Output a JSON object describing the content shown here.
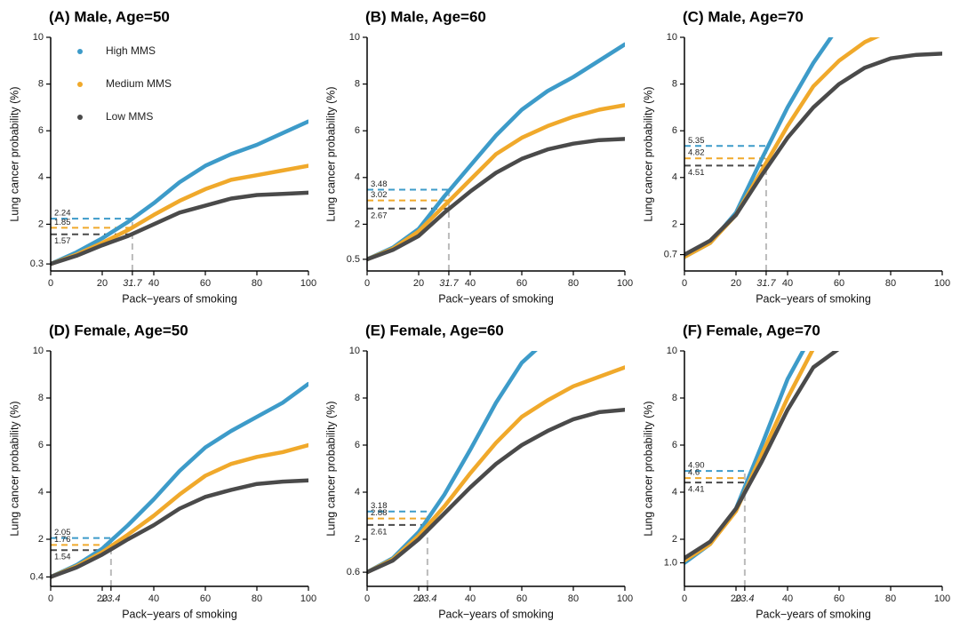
{
  "chart_data": [
    {
      "type": "line",
      "title": "(A) Male, Age=50",
      "xlabel": "Pack−years of smoking",
      "ylabel": "Lung cancer probability (%)",
      "x": [
        0,
        10,
        20,
        30,
        40,
        50,
        60,
        70,
        80,
        90,
        100
      ],
      "xlim": [
        0,
        100
      ],
      "xticks": [
        0,
        20,
        31.7,
        40,
        60,
        80,
        100
      ],
      "ylim": [
        0,
        10
      ],
      "yticks": [
        0.3,
        2,
        4,
        6,
        8,
        10
      ],
      "ref_x": 31.7,
      "legend": "upper left",
      "series": [
        {
          "name": "High MMS",
          "color": "#3d9bc9",
          "values": [
            0.3,
            0.8,
            1.4,
            2.1,
            2.9,
            3.8,
            4.5,
            5.0,
            5.4,
            5.9,
            6.4
          ],
          "ref": 2.24
        },
        {
          "name": "Medium MMS",
          "color": "#f0a92b",
          "values": [
            0.3,
            0.7,
            1.2,
            1.75,
            2.4,
            3.0,
            3.5,
            3.9,
            4.1,
            4.3,
            4.5
          ],
          "ref": 1.85
        },
        {
          "name": "Low MMS",
          "color": "#4a4a4a",
          "values": [
            0.3,
            0.65,
            1.1,
            1.5,
            2.0,
            2.5,
            2.8,
            3.1,
            3.25,
            3.3,
            3.35
          ],
          "ref": 1.57
        }
      ]
    },
    {
      "type": "line",
      "title": "(B) Male, Age=60",
      "xlabel": "Pack−years of smoking",
      "ylabel": "Lung cancer probability (%)",
      "x": [
        0,
        10,
        20,
        30,
        40,
        50,
        60,
        70,
        80,
        90,
        100
      ],
      "xlim": [
        0,
        100
      ],
      "xticks": [
        0,
        20,
        31.7,
        40,
        60,
        80,
        100
      ],
      "ylim": [
        0,
        10
      ],
      "yticks": [
        0.5,
        2,
        4,
        6,
        8,
        10
      ],
      "ref_x": 31.7,
      "series": [
        {
          "color": "#3d9bc9",
          "values": [
            0.5,
            1.0,
            1.8,
            3.2,
            4.5,
            5.8,
            6.9,
            7.7,
            8.3,
            9.0,
            9.7
          ],
          "ref": 3.48
        },
        {
          "color": "#f0a92b",
          "values": [
            0.5,
            0.95,
            1.7,
            2.8,
            3.9,
            5.0,
            5.7,
            6.2,
            6.6,
            6.9,
            7.1
          ],
          "ref": 3.02
        },
        {
          "color": "#4a4a4a",
          "values": [
            0.5,
            0.9,
            1.5,
            2.5,
            3.4,
            4.2,
            4.8,
            5.2,
            5.45,
            5.6,
            5.65
          ],
          "ref": 2.67
        }
      ]
    },
    {
      "type": "line",
      "title": "(C) Male, Age=70",
      "xlabel": "Pack−years of smoking",
      "ylabel": "Lung cancer probability (%)",
      "x": [
        0,
        10,
        20,
        30,
        40,
        50,
        60,
        70,
        80,
        90,
        100
      ],
      "xlim": [
        0,
        100
      ],
      "xticks": [
        0,
        20,
        31.7,
        40,
        60,
        80,
        100
      ],
      "ylim": [
        0,
        10
      ],
      "yticks": [
        0.7,
        2,
        4,
        6,
        8,
        10
      ],
      "ref_x": 31.7,
      "series": [
        {
          "color": "#3d9bc9",
          "values": [
            0.6,
            1.2,
            2.5,
            4.8,
            7.0,
            8.9,
            10.5,
            null,
            null,
            null,
            null
          ],
          "ref": 5.35
        },
        {
          "color": "#f0a92b",
          "values": [
            0.6,
            1.2,
            2.4,
            4.3,
            6.2,
            7.9,
            9.0,
            9.8,
            10.3,
            null,
            null
          ],
          "ref": 4.82
        },
        {
          "color": "#4a4a4a",
          "values": [
            0.7,
            1.3,
            2.4,
            4.1,
            5.7,
            7.0,
            8.0,
            8.7,
            9.1,
            9.25,
            9.3
          ],
          "ref": 4.51
        }
      ]
    },
    {
      "type": "line",
      "title": "(D) Female, Age=50",
      "xlabel": "Pack−years of smoking",
      "ylabel": "Lung cancer probability (%)",
      "x": [
        0,
        10,
        20,
        30,
        40,
        50,
        60,
        70,
        80,
        90,
        100
      ],
      "xlim": [
        0,
        100
      ],
      "xticks": [
        0,
        20,
        23.4,
        40,
        60,
        80,
        100
      ],
      "ylim": [
        0,
        10
      ],
      "yticks": [
        0.4,
        2,
        4,
        6,
        8,
        10
      ],
      "ref_x": 23.4,
      "series": [
        {
          "color": "#3d9bc9",
          "values": [
            0.4,
            0.9,
            1.6,
            2.6,
            3.7,
            4.9,
            5.9,
            6.6,
            7.2,
            7.8,
            8.6
          ],
          "ref": 2.05
        },
        {
          "color": "#f0a92b",
          "values": [
            0.4,
            0.85,
            1.45,
            2.2,
            3.0,
            3.9,
            4.7,
            5.2,
            5.5,
            5.7,
            6.0
          ],
          "ref": 1.76
        },
        {
          "color": "#4a4a4a",
          "values": [
            0.4,
            0.8,
            1.35,
            2.0,
            2.6,
            3.3,
            3.8,
            4.1,
            4.35,
            4.45,
            4.5
          ],
          "ref": 1.54
        }
      ]
    },
    {
      "type": "line",
      "title": "(E) Female, Age=60",
      "xlabel": "Pack−years of smoking",
      "ylabel": "Lung cancer probability (%)",
      "x": [
        0,
        10,
        20,
        30,
        40,
        50,
        60,
        70,
        80,
        90,
        100
      ],
      "xlim": [
        0,
        100
      ],
      "xticks": [
        0,
        20,
        23.4,
        40,
        60,
        80,
        100
      ],
      "ylim": [
        0,
        10
      ],
      "yticks": [
        0.6,
        2,
        4,
        6,
        8,
        10
      ],
      "ref_x": 23.4,
      "series": [
        {
          "color": "#3d9bc9",
          "values": [
            0.6,
            1.2,
            2.3,
            3.9,
            5.8,
            7.8,
            9.5,
            10.5,
            null,
            null,
            null
          ],
          "ref": 3.18
        },
        {
          "color": "#f0a92b",
          "values": [
            0.6,
            1.15,
            2.15,
            3.4,
            4.8,
            6.1,
            7.2,
            7.9,
            8.5,
            8.9,
            9.3
          ],
          "ref": 2.88
        },
        {
          "color": "#4a4a4a",
          "values": [
            0.6,
            1.1,
            2.0,
            3.1,
            4.2,
            5.2,
            6.0,
            6.6,
            7.1,
            7.4,
            7.5
          ],
          "ref": 2.61
        }
      ]
    },
    {
      "type": "line",
      "title": "(F) Female, Age=70",
      "xlabel": "Pack−years of smoking",
      "ylabel": "Lung cancer probability (%)",
      "x": [
        0,
        10,
        20,
        30,
        40,
        50,
        60,
        70,
        80,
        90,
        100
      ],
      "xlim": [
        0,
        100
      ],
      "xticks": [
        0,
        20,
        23.4,
        40,
        60,
        80,
        100
      ],
      "ylim": [
        0,
        10
      ],
      "yticks": [
        {
          "value": 1,
          "label": "1.0"
        },
        2,
        4,
        6,
        8,
        10
      ],
      "ref_x": 23.4,
      "series": [
        {
          "color": "#3d9bc9",
          "values": [
            1.0,
            1.8,
            3.3,
            6.0,
            8.8,
            10.8,
            null,
            null,
            null,
            null,
            null
          ],
          "ref": {
            "value": 4.9,
            "label": "4.90"
          }
        },
        {
          "color": "#f0a92b",
          "values": [
            1.1,
            1.8,
            3.2,
            5.6,
            8.0,
            10.1,
            null,
            null,
            null,
            null,
            null
          ],
          "ref": 4.6
        },
        {
          "color": "#4a4a4a",
          "values": [
            1.2,
            1.9,
            3.3,
            5.3,
            7.5,
            9.3,
            10.1,
            null,
            null,
            null,
            null
          ],
          "ref": 4.41
        }
      ]
    }
  ]
}
